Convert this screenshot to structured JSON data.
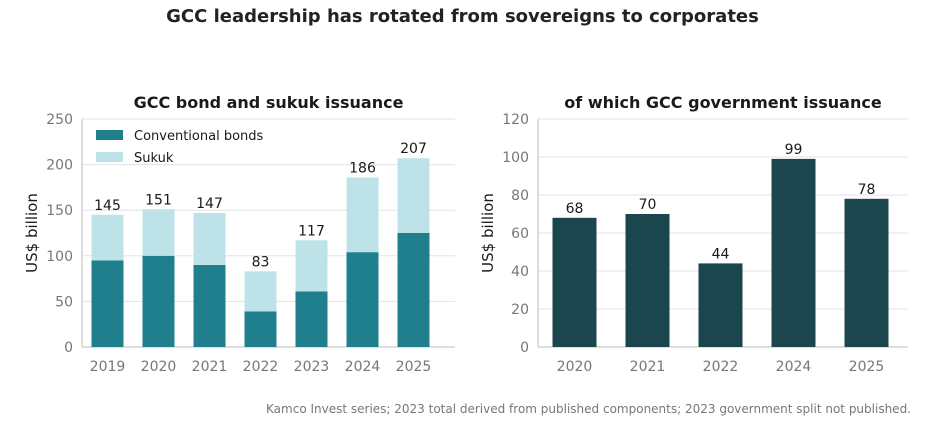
{
  "title": "GCC leadership has rotated from sovereigns to corporates",
  "footnote": "Kamco Invest series; 2023 total derived from published components; 2023 government split not published.",
  "colors": {
    "conventional": "#1f7f8c",
    "sukuk": "#bde3e8",
    "government": "#1c464d",
    "grid": "#e3e3e3",
    "axis": "#bfbfbf",
    "tick_text": "#777777"
  },
  "chart_data": [
    {
      "type": "bar",
      "stacked": true,
      "title": "GCC bond and sukuk issuance",
      "xlabel": "",
      "ylabel": "US$ billion",
      "ylim": [
        0,
        250
      ],
      "yticks": [
        0,
        50,
        100,
        150,
        200,
        250
      ],
      "grid": true,
      "legend": "top-left",
      "categories": [
        "2019",
        "2020",
        "2021",
        "2022",
        "2023",
        "2024",
        "2025"
      ],
      "series": [
        {
          "name": "Conventional bonds",
          "values": [
            95,
            100,
            90,
            39,
            61,
            104,
            125
          ]
        },
        {
          "name": "Sukuk",
          "values": [
            50,
            51,
            57,
            44,
            56,
            82,
            82
          ]
        }
      ],
      "totals": [
        145,
        151,
        147,
        83,
        117,
        186,
        207
      ]
    },
    {
      "type": "bar",
      "title": "of which GCC government issuance",
      "xlabel": "",
      "ylabel": "US$ billion",
      "ylim": [
        0,
        120
      ],
      "yticks": [
        0,
        20,
        40,
        60,
        80,
        100,
        120
      ],
      "grid": true,
      "categories": [
        "2020",
        "2021",
        "2022",
        "2024",
        "2025"
      ],
      "values": [
        68,
        70,
        44,
        99,
        78
      ]
    }
  ]
}
